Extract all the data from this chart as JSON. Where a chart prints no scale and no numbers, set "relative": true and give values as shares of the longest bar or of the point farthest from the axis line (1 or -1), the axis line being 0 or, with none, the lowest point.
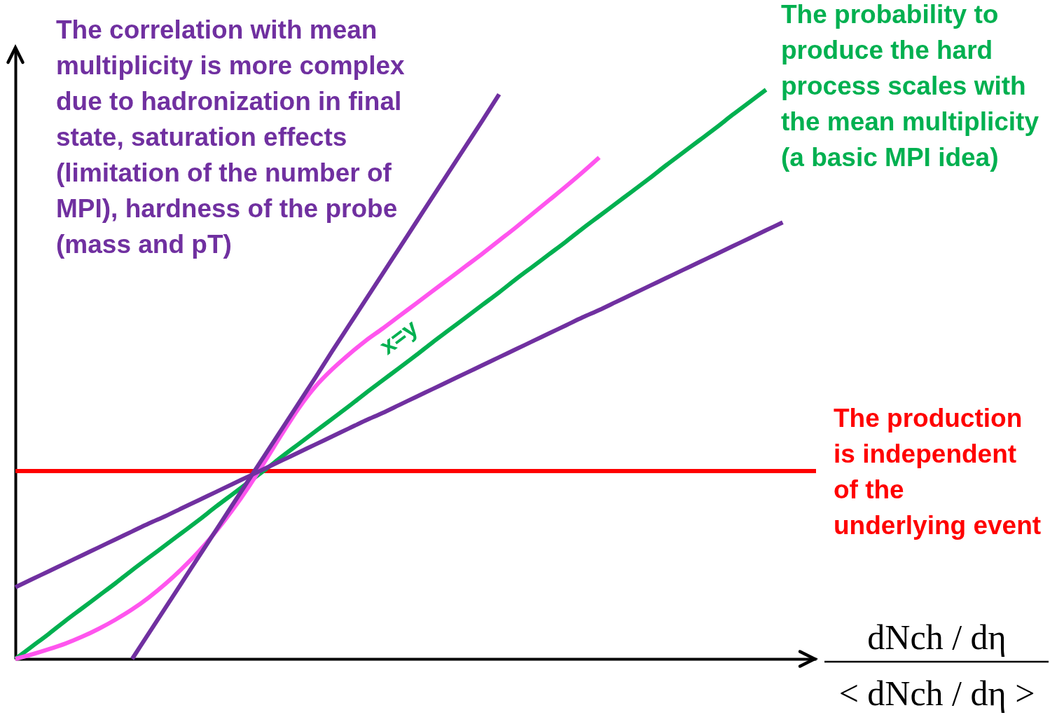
{
  "chart_data": {
    "type": "line",
    "relative": true,
    "xlabel": "dNch / dη\n< dNch / dη >",
    "categories": [
      null,
      null,
      null,
      null,
      null,
      null,
      null,
      null,
      null,
      null,
      null,
      null,
      null,
      null,
      null,
      null,
      null,
      null,
      null,
      null,
      null,
      null,
      null,
      null,
      null,
      null,
      null,
      null,
      null,
      null,
      null,
      null,
      null,
      null,
      null,
      null,
      null,
      null,
      null,
      null,
      null,
      null,
      null,
      null,
      null,
      null,
      null,
      null,
      null
    ],
    "series": [
      {
        "color": "#ff0000",
        "values": [
          0.33,
          0.33,
          0.33,
          0.33,
          0.33,
          0.33,
          0.33,
          0.33,
          0.33,
          0.33,
          0.33,
          0.33,
          0.33,
          0.33,
          0.33,
          0.33,
          0.33,
          0.33,
          0.33,
          0.33,
          0.33,
          0.33,
          0.33,
          0.33,
          0.33,
          0.33,
          0.33,
          0.33,
          0.33,
          0.33,
          0.33,
          0.33,
          0.33,
          0.33,
          0.33,
          0.33,
          0.33,
          0.33,
          0.33,
          0.33,
          0.33,
          0.33,
          0.33,
          0.33,
          0.33,
          0.33,
          0.33,
          0.33,
          0.33
        ]
      },
      {
        "color": "#00b050",
        "values": [
          0,
          0.022,
          0.044,
          0.067,
          0.089,
          0.111,
          0.133,
          0.156,
          0.178,
          0.2,
          0.222,
          0.244,
          0.267,
          0.289,
          0.311,
          0.333,
          0.356,
          0.378,
          0.4,
          0.422,
          0.444,
          0.467,
          0.489,
          0.511,
          0.533,
          0.556,
          0.578,
          0.6,
          0.622,
          0.644,
          0.667,
          0.689,
          0.711,
          0.733,
          0.756,
          0.778,
          0.8,
          0.822,
          0.844,
          0.867,
          0.889,
          0.911,
          0.933,
          0.956,
          0.978,
          1.0,
          null,
          null,
          null
        ]
      },
      {
        "color": "#ff55ee",
        "values": [
          0,
          0.008,
          0.017,
          0.027,
          0.039,
          0.053,
          0.069,
          0.087,
          0.108,
          0.132,
          0.159,
          0.189,
          0.223,
          0.261,
          0.303,
          0.349,
          0.396,
          0.441,
          0.479,
          0.509,
          0.535,
          0.559,
          0.58,
          0.602,
          0.624,
          0.646,
          0.668,
          0.69,
          0.712,
          0.735,
          0.758,
          0.782,
          0.806,
          0.83,
          0.855,
          0.881,
          null,
          null,
          null,
          null,
          null,
          null,
          null,
          null,
          null,
          null,
          null,
          null,
          null
        ]
      },
      {
        "color": "#7030a0",
        "values": [
          null,
          null,
          null,
          null,
          null,
          null,
          null,
          0,
          0.045,
          0.09,
          0.135,
          0.18,
          0.225,
          0.27,
          0.315,
          0.36,
          0.405,
          0.45,
          0.495,
          0.541,
          0.586,
          0.631,
          0.676,
          0.721,
          0.766,
          0.811,
          0.856,
          0.901,
          0.946,
          0.992,
          null,
          null,
          null,
          null,
          null,
          null,
          null,
          null,
          null,
          null,
          null,
          null,
          null,
          null,
          null,
          null,
          null,
          null,
          null
        ]
      },
      {
        "color": "#7030a0",
        "values": [
          0.126,
          0.14,
          0.154,
          0.168,
          0.182,
          0.196,
          0.21,
          0.224,
          0.238,
          0.251,
          0.265,
          0.279,
          0.293,
          0.307,
          0.321,
          0.335,
          0.349,
          0.363,
          0.377,
          0.391,
          0.405,
          0.419,
          0.432,
          0.446,
          0.46,
          0.474,
          0.488,
          0.502,
          0.516,
          0.53,
          0.544,
          0.558,
          0.572,
          0.586,
          0.6,
          0.613,
          0.627,
          0.641,
          0.655,
          0.669,
          0.683,
          0.697,
          0.711,
          0.725,
          0.739,
          0.753,
          0.767,
          null,
          null
        ]
      }
    ],
    "annotations": [
      "The correlation with mean multiplicity is more complex due to hadronization in final state, saturation effects (limitation of the number of MPI), hardness of the probe (mass and pT)",
      "The probability to produce the hard process scales with the mean multiplicity (a basic MPI idea)",
      "The production is independent of the underlying event",
      "x=y"
    ]
  }
}
